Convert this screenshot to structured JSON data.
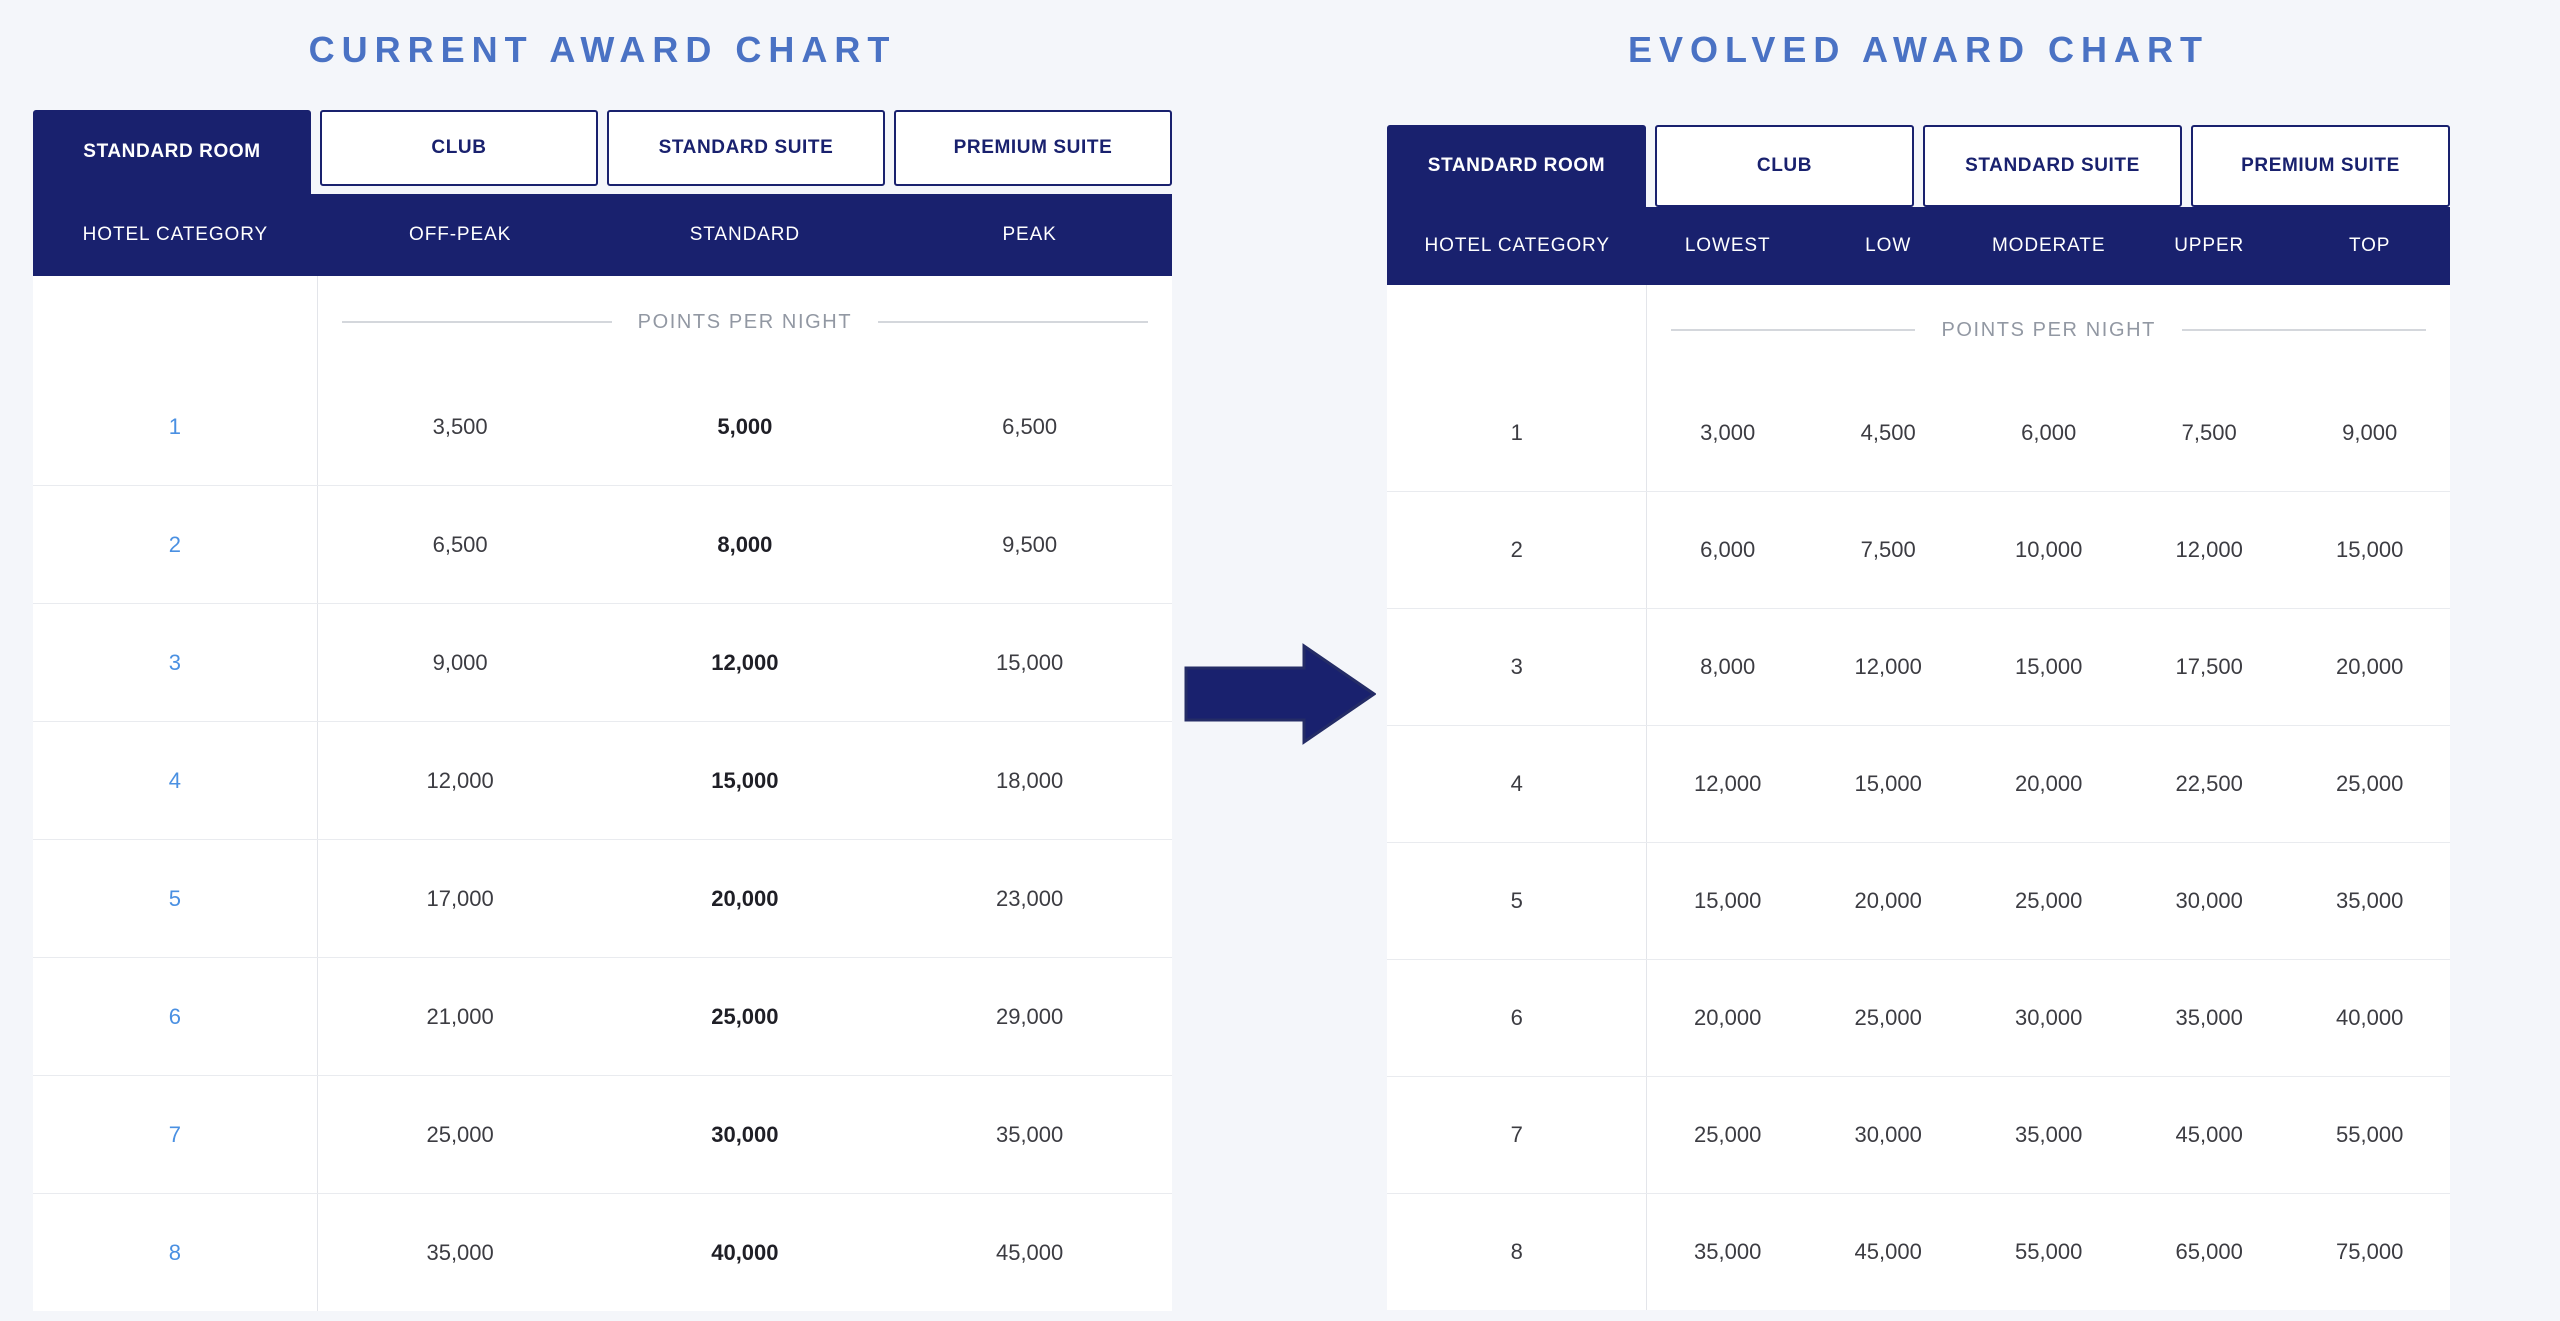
{
  "colors": {
    "page_background": "#f4f6fa",
    "navy": "#19216e",
    "title_blue": "#4a72c4",
    "category_link_blue": "#4a90e2",
    "cell_text": "#3c3c42"
  },
  "arrow": {
    "icon": "arrow-right-icon",
    "direction": "right",
    "color": "#19216e"
  },
  "left_chart": {
    "title": "CURRENT AWARD CHART",
    "tabs": [
      {
        "label": "STANDARD ROOM",
        "active": true
      },
      {
        "label": "CLUB",
        "active": false
      },
      {
        "label": "STANDARD SUITE",
        "active": false
      },
      {
        "label": "PREMIUM SUITE",
        "active": false
      }
    ],
    "columns": [
      "HOTEL CATEGORY",
      "OFF-PEAK",
      "STANDARD",
      "PEAK"
    ],
    "points_per_night_label": "POINTS PER NIGHT",
    "bold_value_index": 1,
    "category_is_link": true,
    "rows": [
      {
        "category": "1",
        "values": [
          "3,500",
          "5,000",
          "6,500"
        ]
      },
      {
        "category": "2",
        "values": [
          "6,500",
          "8,000",
          "9,500"
        ]
      },
      {
        "category": "3",
        "values": [
          "9,000",
          "12,000",
          "15,000"
        ]
      },
      {
        "category": "4",
        "values": [
          "12,000",
          "15,000",
          "18,000"
        ]
      },
      {
        "category": "5",
        "values": [
          "17,000",
          "20,000",
          "23,000"
        ]
      },
      {
        "category": "6",
        "values": [
          "21,000",
          "25,000",
          "29,000"
        ]
      },
      {
        "category": "7",
        "values": [
          "25,000",
          "30,000",
          "35,000"
        ]
      },
      {
        "category": "8",
        "values": [
          "35,000",
          "40,000",
          "45,000"
        ]
      }
    ]
  },
  "right_chart": {
    "title": "EVOLVED AWARD CHART",
    "tabs": [
      {
        "label": "STANDARD ROOM",
        "active": true
      },
      {
        "label": "CLUB",
        "active": false
      },
      {
        "label": "STANDARD SUITE",
        "active": false
      },
      {
        "label": "PREMIUM SUITE",
        "active": false
      }
    ],
    "columns": [
      "HOTEL CATEGORY",
      "LOWEST",
      "LOW",
      "MODERATE",
      "UPPER",
      "TOP"
    ],
    "points_per_night_label": "POINTS PER NIGHT",
    "bold_value_index": null,
    "category_is_link": false,
    "rows": [
      {
        "category": "1",
        "values": [
          "3,000",
          "4,500",
          "6,000",
          "7,500",
          "9,000"
        ]
      },
      {
        "category": "2",
        "values": [
          "6,000",
          "7,500",
          "10,000",
          "12,000",
          "15,000"
        ]
      },
      {
        "category": "3",
        "values": [
          "8,000",
          "12,000",
          "15,000",
          "17,500",
          "20,000"
        ]
      },
      {
        "category": "4",
        "values": [
          "12,000",
          "15,000",
          "20,000",
          "22,500",
          "25,000"
        ]
      },
      {
        "category": "5",
        "values": [
          "15,000",
          "20,000",
          "25,000",
          "30,000",
          "35,000"
        ]
      },
      {
        "category": "6",
        "values": [
          "20,000",
          "25,000",
          "30,000",
          "35,000",
          "40,000"
        ]
      },
      {
        "category": "7",
        "values": [
          "25,000",
          "30,000",
          "35,000",
          "45,000",
          "55,000"
        ]
      },
      {
        "category": "8",
        "values": [
          "35,000",
          "45,000",
          "55,000",
          "65,000",
          "75,000"
        ]
      }
    ]
  },
  "chart_data": [
    {
      "type": "table",
      "title": "CURRENT AWARD CHART",
      "columns": [
        "HOTEL CATEGORY",
        "OFF-PEAK",
        "STANDARD",
        "PEAK"
      ],
      "rows": [
        [
          1,
          3500,
          5000,
          6500
        ],
        [
          2,
          6500,
          8000,
          9500
        ],
        [
          3,
          9000,
          12000,
          15000
        ],
        [
          4,
          12000,
          15000,
          18000
        ],
        [
          5,
          17000,
          20000,
          23000
        ],
        [
          6,
          21000,
          25000,
          29000
        ],
        [
          7,
          25000,
          30000,
          35000
        ],
        [
          8,
          35000,
          40000,
          45000
        ]
      ]
    },
    {
      "type": "table",
      "title": "EVOLVED AWARD CHART",
      "columns": [
        "HOTEL CATEGORY",
        "LOWEST",
        "LOW",
        "MODERATE",
        "UPPER",
        "TOP"
      ],
      "rows": [
        [
          1,
          3000,
          4500,
          6000,
          7500,
          9000
        ],
        [
          2,
          6000,
          7500,
          10000,
          12000,
          15000
        ],
        [
          3,
          8000,
          12000,
          15000,
          17500,
          20000
        ],
        [
          4,
          12000,
          15000,
          20000,
          22500,
          25000
        ],
        [
          5,
          15000,
          20000,
          25000,
          30000,
          35000
        ],
        [
          6,
          20000,
          25000,
          30000,
          35000,
          40000
        ],
        [
          7,
          25000,
          30000,
          35000,
          45000,
          55000
        ],
        [
          8,
          35000,
          45000,
          55000,
          65000,
          75000
        ]
      ]
    }
  ]
}
